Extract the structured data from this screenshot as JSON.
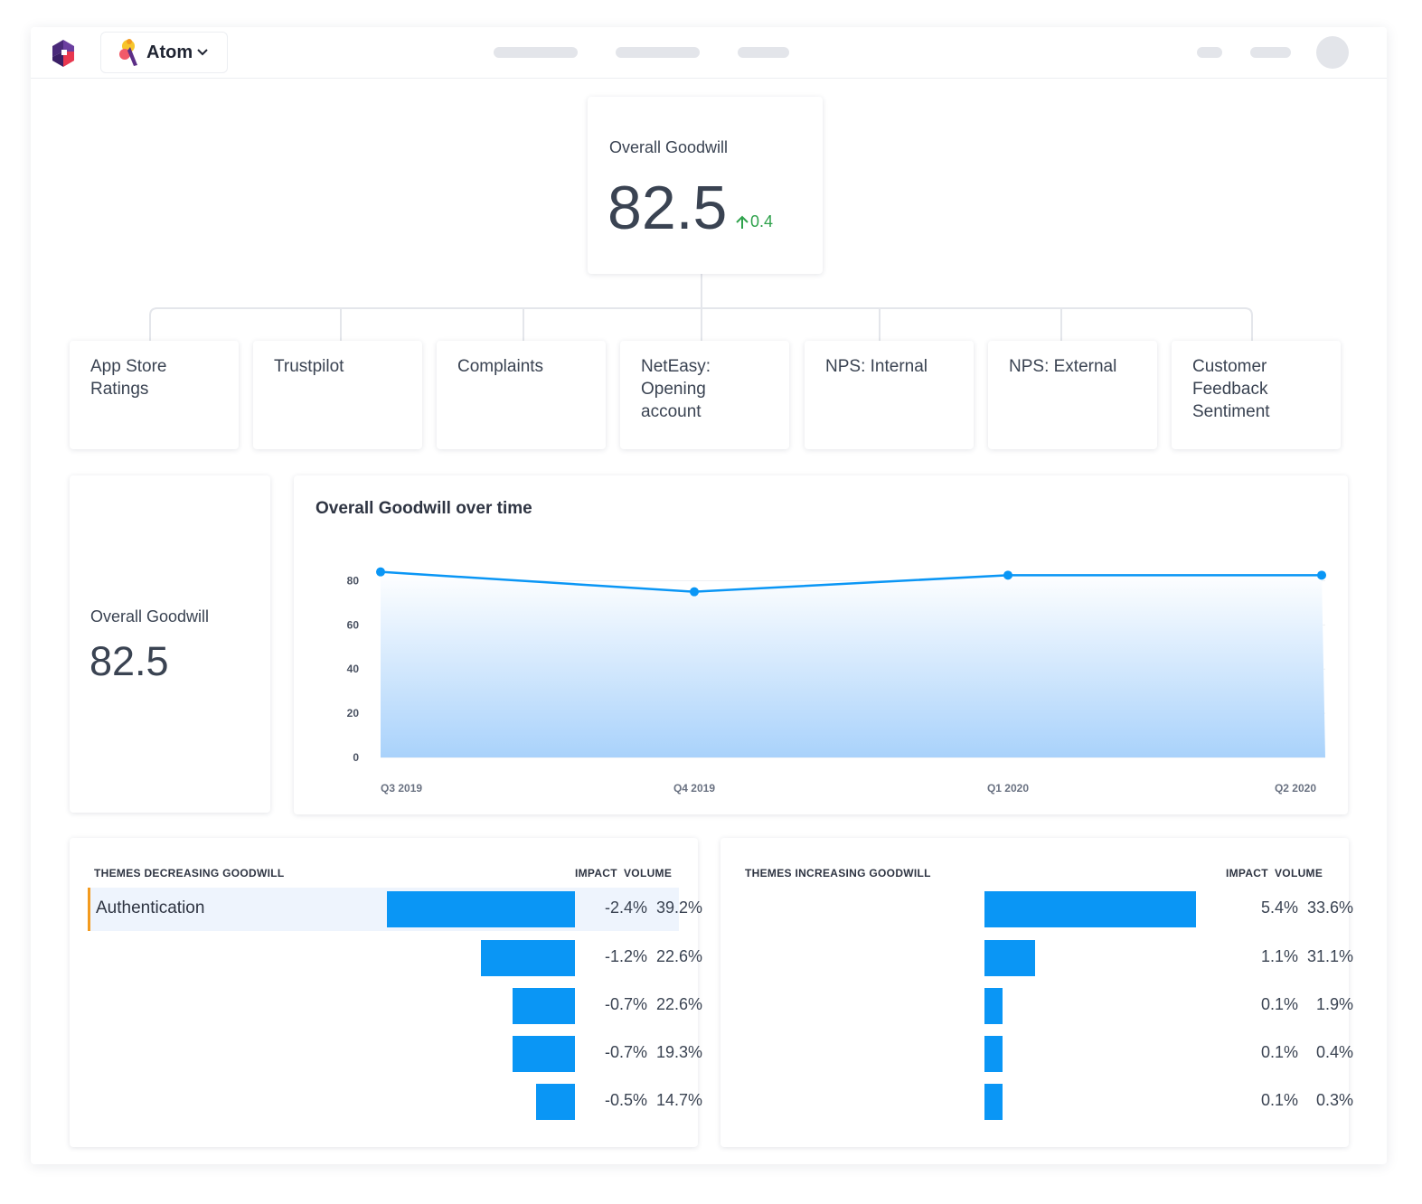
{
  "header": {
    "app_name": "Atom",
    "brand_colors": {
      "primary": "#4a2a7a",
      "accent": "#e8374f",
      "chart": "#0a96f5",
      "positive": "#2fa24c",
      "highlight": "#f39a1e"
    },
    "icons": [
      "logo-icon",
      "atom-logo-icon",
      "chevron-down-icon"
    ]
  },
  "overall": {
    "label": "Overall Goodwill",
    "value": "82.5",
    "delta": "0.4"
  },
  "sources": [
    {
      "label": "App Store\nRatings"
    },
    {
      "label": "Trustpilot"
    },
    {
      "label": "Complaints"
    },
    {
      "label": "NetEasy:\nOpening\naccount"
    },
    {
      "label": "NPS: Internal"
    },
    {
      "label": "NPS: External"
    },
    {
      "label": "Customer\nFeedback\nSentiment"
    }
  ],
  "left_kpi": {
    "label": "Overall Goodwill",
    "value": "82.5"
  },
  "chart_data": {
    "type": "area",
    "title": "Overall Goodwill over time",
    "categories": [
      "Q3 2019",
      "Q4 2019",
      "Q1 2020",
      "Q2 2020"
    ],
    "series": [
      {
        "name": "Overall Goodwill",
        "values": [
          84,
          75,
          82.5,
          82.5
        ]
      }
    ],
    "ylim": [
      0,
      90
    ],
    "yticks": [
      0,
      20,
      40,
      60,
      80
    ],
    "xlabel": "",
    "ylabel": ""
  },
  "themes_decreasing": {
    "title": "THEMES DECREASING GOODWILL",
    "impact_header": "IMPACT",
    "volume_header": "VOLUME",
    "rows": [
      {
        "name": "Authentication",
        "impact": "-2.4%",
        "volume": "39.2%",
        "magnitude": 2.4
      },
      {
        "name": "",
        "impact": "-1.2%",
        "volume": "22.6%",
        "magnitude": 1.2
      },
      {
        "name": "",
        "impact": "-0.7%",
        "volume": "22.6%",
        "magnitude": 0.8
      },
      {
        "name": "",
        "impact": "-0.7%",
        "volume": "19.3%",
        "magnitude": 0.8
      },
      {
        "name": "",
        "impact": "-0.5%",
        "volume": "14.7%",
        "magnitude": 0.5
      }
    ]
  },
  "themes_increasing": {
    "title": "THEMES INCREASING GOODWILL",
    "impact_header": "IMPACT",
    "volume_header": "VOLUME",
    "rows": [
      {
        "impact": "5.4%",
        "volume": "33.6%",
        "magnitude": 5.4
      },
      {
        "impact": "1.1%",
        "volume": "31.1%",
        "magnitude": 1.3
      },
      {
        "impact": "0.1%",
        "volume": "1.9%",
        "magnitude": 0.45
      },
      {
        "impact": "0.1%",
        "volume": "0.4%",
        "magnitude": 0.45
      },
      {
        "impact": "0.1%",
        "volume": "0.3%",
        "magnitude": 0.45
      }
    ]
  }
}
